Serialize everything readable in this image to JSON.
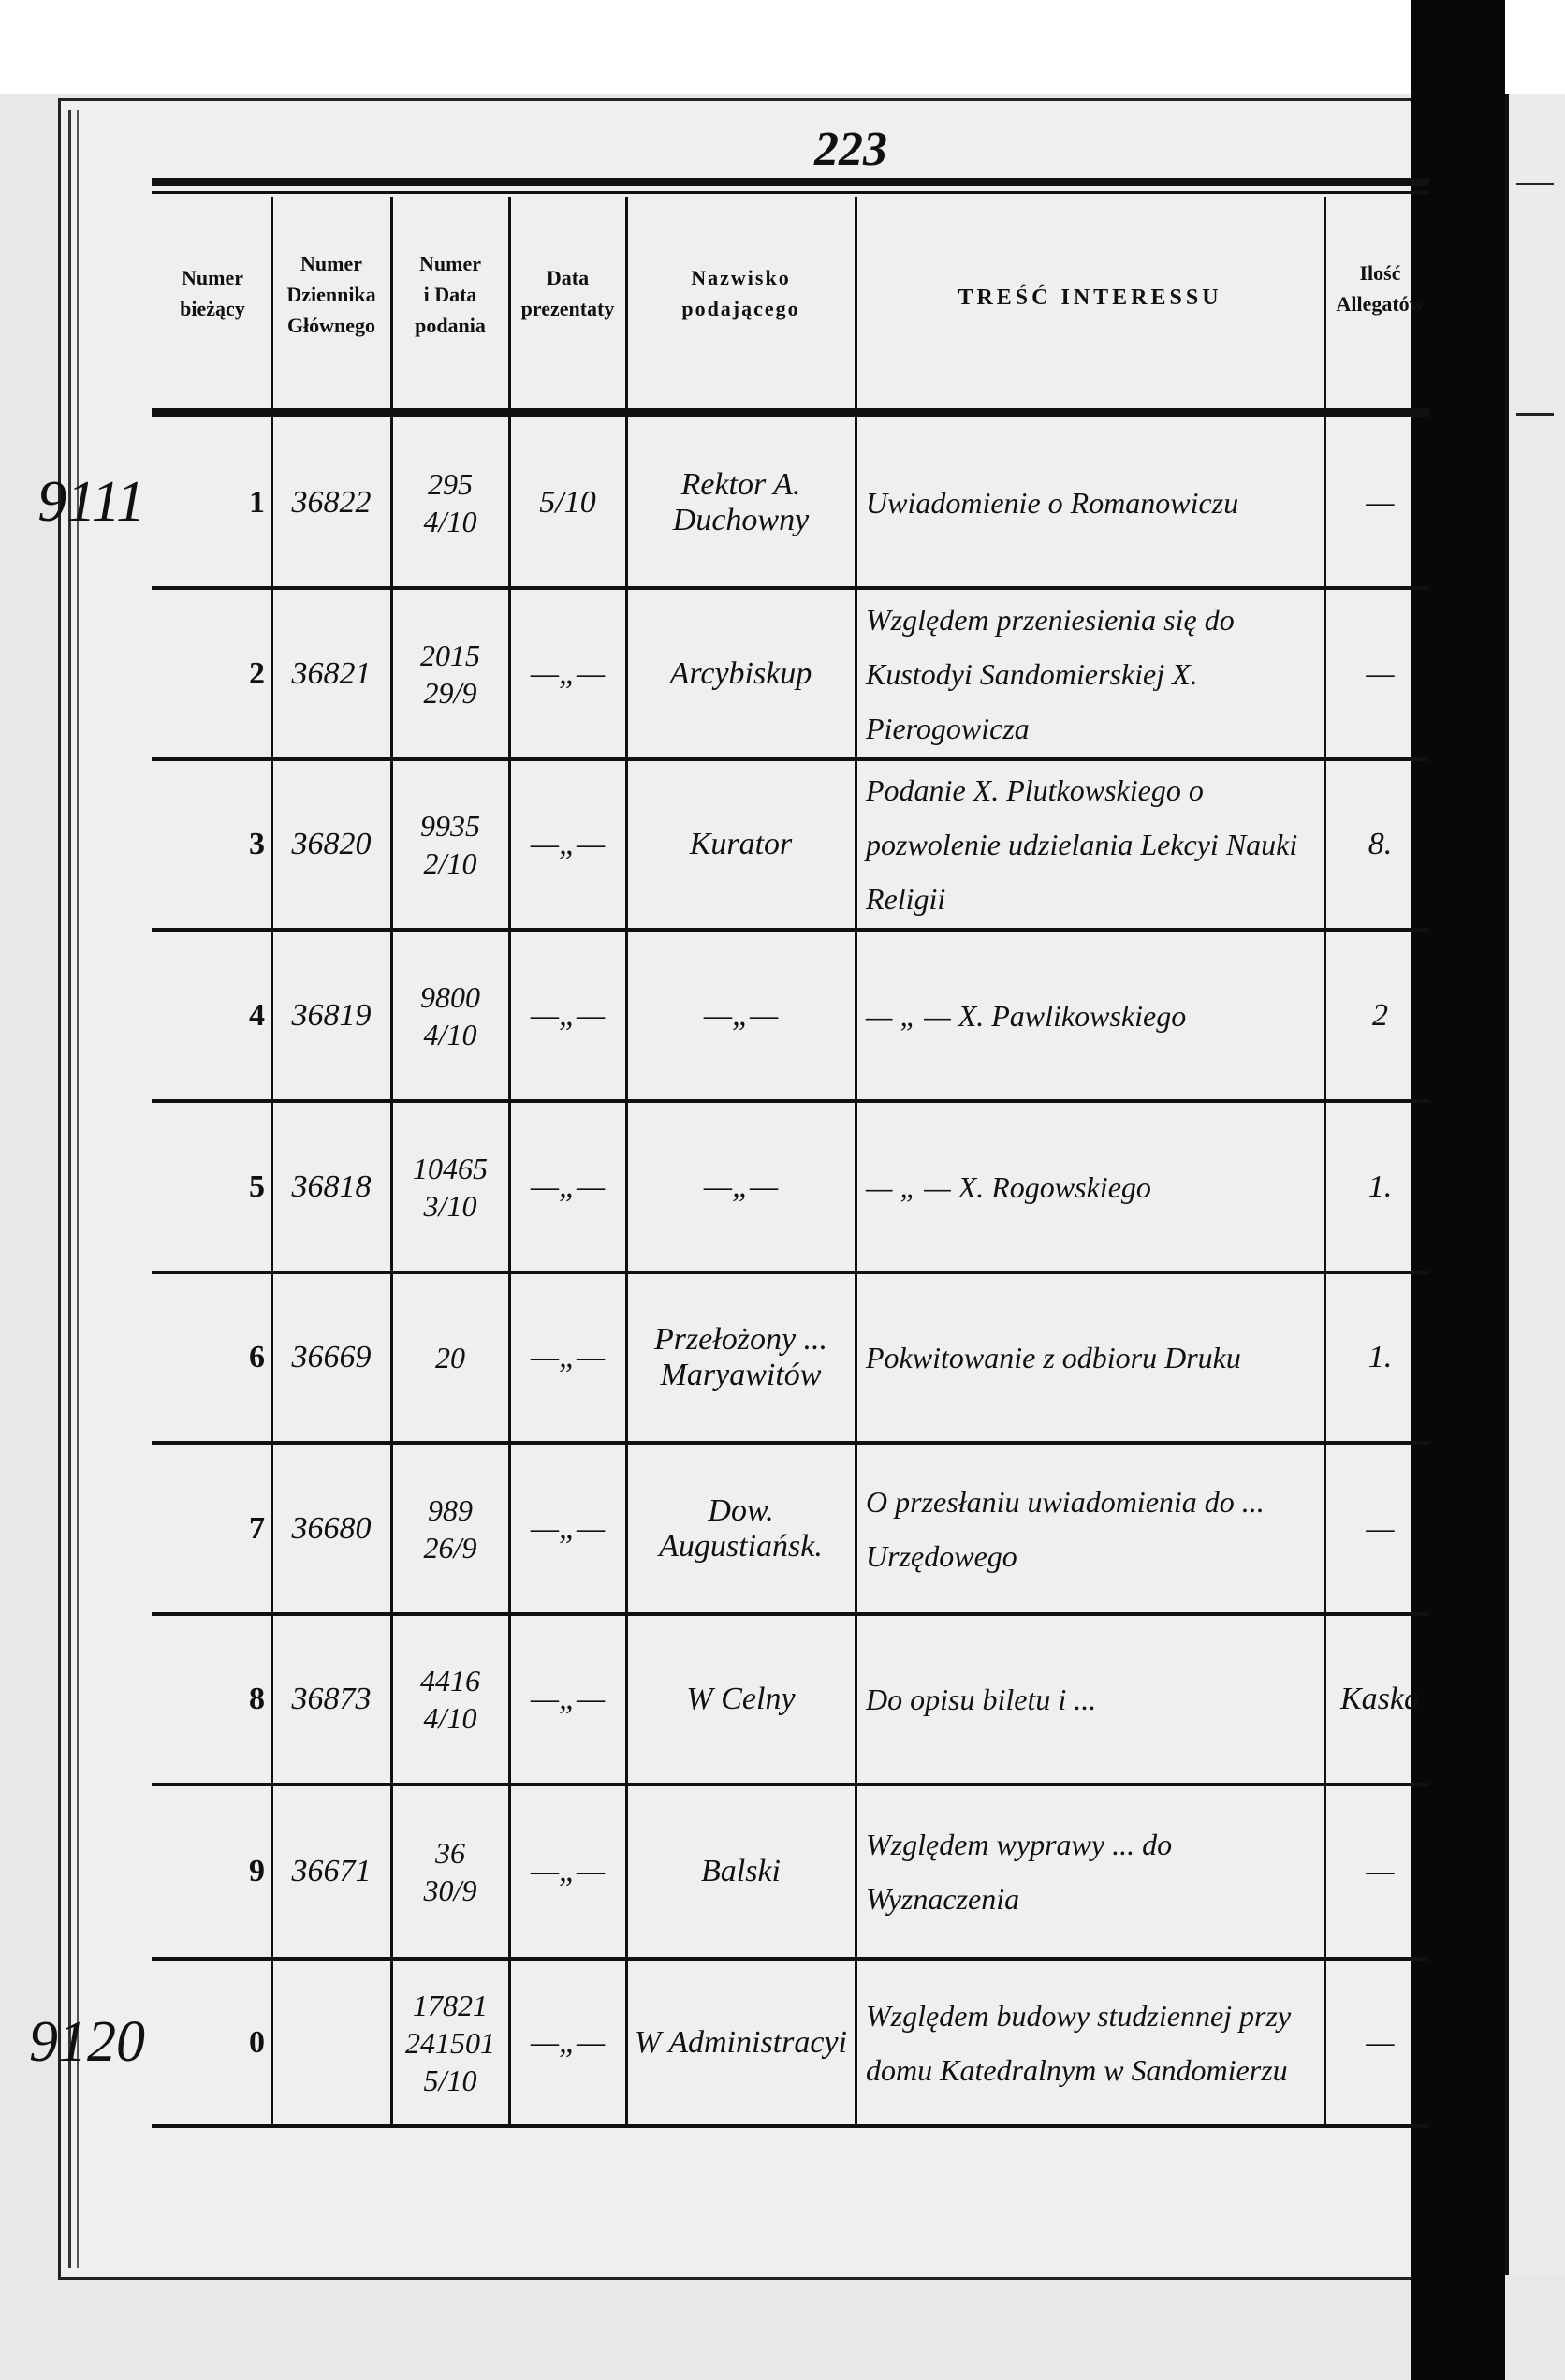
{
  "page_number": "223",
  "headers": {
    "numer_biezacy": [
      "Numer",
      "bieżący"
    ],
    "numer_dziennika": [
      "Numer",
      "Dziennika",
      "Głównego"
    ],
    "numer_data": [
      "Numer",
      "i Data",
      "podania"
    ],
    "data_prezentaty": [
      "Data",
      "prezentaty"
    ],
    "nazwisko": [
      "Nazwisko",
      "podającego"
    ],
    "tresc": "TREŚĆ INTERESSU",
    "ilosc": [
      "Ilość",
      "Allegatów"
    ]
  },
  "rows": [
    {
      "margin": "9111",
      "no": "1",
      "dziennik": "36822",
      "numer_data": [
        "295",
        "4/10"
      ],
      "prezentata": "5/10",
      "nazwisko": "Rektor A. Duchowny",
      "tresc": "Uwiadomienie o Romanowiczu",
      "allegaty": "—"
    },
    {
      "margin": "",
      "no": "2",
      "dziennik": "36821",
      "numer_data": [
        "2015",
        "29/9"
      ],
      "prezentata": "—„—",
      "nazwisko": "Arcybiskup",
      "tresc": "Względem przeniesienia się do Kustodyi Sandomierskiej X. Pierogowicza",
      "allegaty": "—"
    },
    {
      "margin": "",
      "no": "3",
      "dziennik": "36820",
      "numer_data": [
        "9935",
        "2/10"
      ],
      "prezentata": "—„—",
      "nazwisko": "Kurator",
      "tresc": "Podanie X. Plutkowskiego o pozwolenie udzielania Lekcyi Nauki Religii",
      "allegaty": "8."
    },
    {
      "margin": "",
      "no": "4",
      "dziennik": "36819",
      "numer_data": [
        "9800",
        "4/10"
      ],
      "prezentata": "—„—",
      "nazwisko": "—„—",
      "tresc": "— „ — X. Pawlikowskiego",
      "allegaty": "2"
    },
    {
      "margin": "",
      "no": "5",
      "dziennik": "36818",
      "numer_data": [
        "10465",
        "3/10"
      ],
      "prezentata": "—„—",
      "nazwisko": "—„—",
      "tresc": "— „ — X. Rogowskiego",
      "allegaty": "1."
    },
    {
      "margin": "",
      "no": "6",
      "dziennik": "36669",
      "numer_data": [
        "20"
      ],
      "prezentata": "—„—",
      "nazwisko": "Przełożony ... Maryawitów",
      "tresc": "Pokwitowanie z odbioru Druku",
      "allegaty": "1."
    },
    {
      "margin": "",
      "no": "7",
      "dziennik": "36680",
      "numer_data": [
        "989",
        "26/9"
      ],
      "prezentata": "—„—",
      "nazwisko": "Dow. Augustiańsk.",
      "tresc": "O przesłaniu uwiadomienia do ... Urzędowego",
      "allegaty": "—"
    },
    {
      "margin": "",
      "no": "8",
      "dziennik": "36873",
      "numer_data": [
        "4416",
        "4/10"
      ],
      "prezentata": "—„—",
      "nazwisko": "W Celny",
      "tresc": "Do opisu biletu i ...",
      "allegaty": "Kaska"
    },
    {
      "margin": "",
      "no": "9",
      "dziennik": "36671",
      "numer_data": [
        "36",
        "30/9"
      ],
      "prezentata": "—„—",
      "nazwisko": "Balski",
      "tresc": "Względem wyprawy ... do Wyznaczenia",
      "allegaty": "—"
    },
    {
      "margin": "9120",
      "no": "0",
      "dziennik": "",
      "numer_data": [
        "17821",
        "241501",
        "5/10"
      ],
      "prezentata": "—„—",
      "nazwisko": "W Administracyi",
      "tresc": "Względem budowy studziennej przy domu Katedralnym w Sandomierzu",
      "allegaty": "—"
    }
  ]
}
